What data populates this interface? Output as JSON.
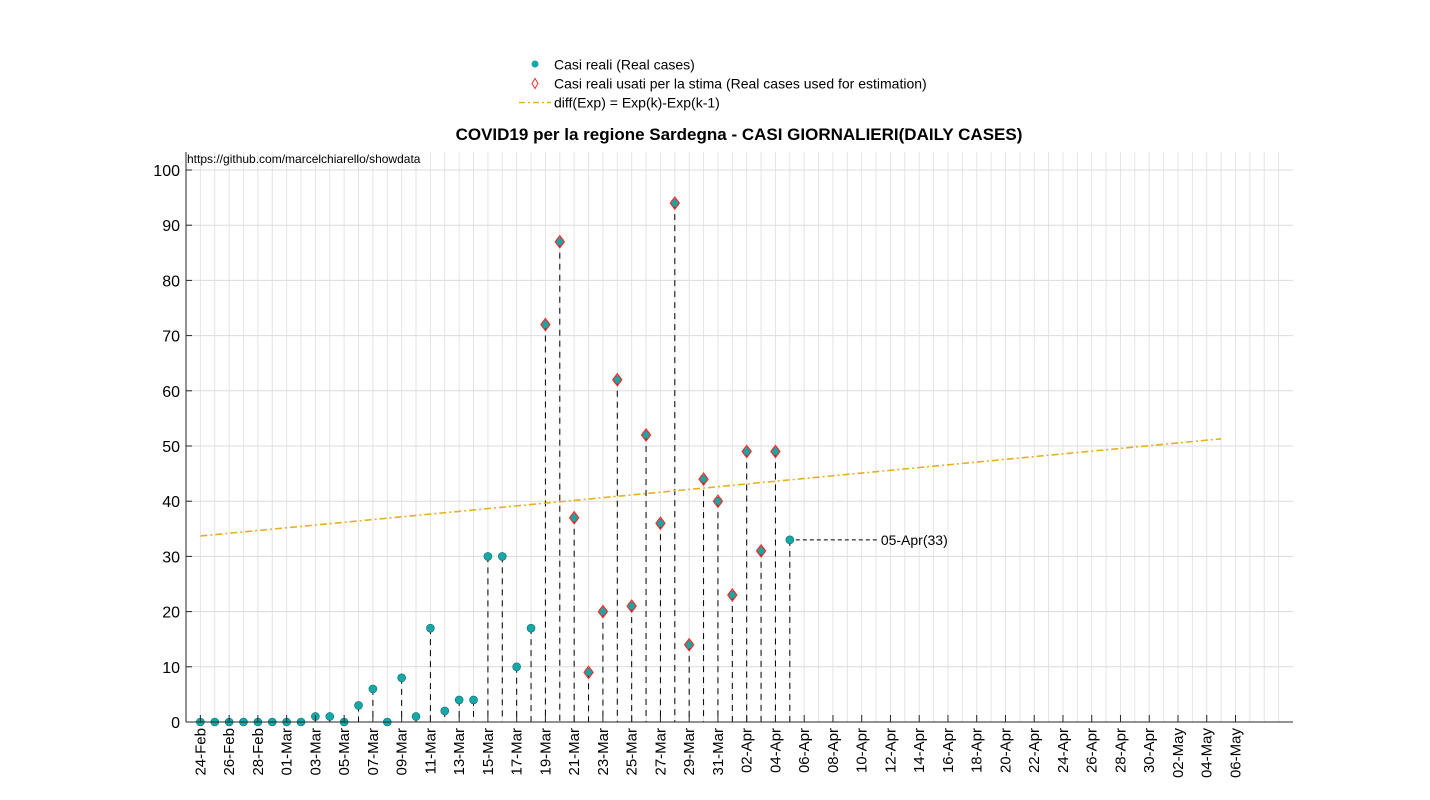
{
  "chart_data": {
    "type": "scatter",
    "title": "COVID19 per la regione Sardegna - CASI GIORNALIERI(DAILY CASES)",
    "source_text": "https://github.com/marcelchiarello/showdata",
    "xlabel": "",
    "ylabel": "",
    "ylim": [
      0,
      100
    ],
    "yticks": [
      0,
      10,
      20,
      30,
      40,
      50,
      60,
      70,
      80,
      90,
      100
    ],
    "xlim": [
      "2020-02-23",
      "2020-05-10"
    ],
    "xtick_labels": [
      "24-Feb",
      "26-Feb",
      "28-Feb",
      "01-Mar",
      "03-Mar",
      "05-Mar",
      "07-Mar",
      "09-Mar",
      "11-Mar",
      "13-Mar",
      "15-Mar",
      "17-Mar",
      "19-Mar",
      "21-Mar",
      "23-Mar",
      "25-Mar",
      "27-Mar",
      "29-Mar",
      "31-Mar",
      "02-Apr",
      "04-Apr",
      "06-Apr",
      "08-Apr",
      "10-Apr",
      "12-Apr",
      "14-Apr",
      "16-Apr",
      "18-Apr",
      "20-Apr",
      "22-Apr",
      "24-Apr",
      "26-Apr",
      "28-Apr",
      "30-Apr",
      "02-May",
      "04-May",
      "06-May"
    ],
    "grid": true,
    "legend_placement": "top-center",
    "legend": [
      "Casi reali (Real cases)",
      "Casi reali usati per la stima (Real cases used for estimation)",
      "diff(Exp) = Exp(k)-Exp(k-1)"
    ],
    "colors": {
      "real_cases": "#17a7a7",
      "estimation_marker": "#ff2a2a",
      "exp_line": "#e6b022",
      "stem": "#000000"
    },
    "series": [
      {
        "name": "Casi reali (Real cases)",
        "x": [
          "2020-02-24",
          "2020-02-25",
          "2020-02-26",
          "2020-02-27",
          "2020-02-28",
          "2020-02-29",
          "2020-03-01",
          "2020-03-02",
          "2020-03-03",
          "2020-03-04",
          "2020-03-05",
          "2020-03-06",
          "2020-03-07",
          "2020-03-08",
          "2020-03-09",
          "2020-03-10",
          "2020-03-11",
          "2020-03-12",
          "2020-03-13",
          "2020-03-14",
          "2020-03-15",
          "2020-03-16",
          "2020-03-17",
          "2020-03-18",
          "2020-03-19",
          "2020-03-20",
          "2020-03-21",
          "2020-03-22",
          "2020-03-23",
          "2020-03-24",
          "2020-03-25",
          "2020-03-26",
          "2020-03-27",
          "2020-03-28",
          "2020-03-29",
          "2020-03-30",
          "2020-03-31",
          "2020-04-01",
          "2020-04-02",
          "2020-04-03",
          "2020-04-04",
          "2020-04-05"
        ],
        "values": [
          0,
          0,
          0,
          0,
          0,
          0,
          0,
          0,
          1,
          1,
          0,
          3,
          6,
          0,
          8,
          1,
          17,
          2,
          4,
          4,
          30,
          30,
          10,
          17,
          72,
          87,
          37,
          9,
          20,
          62,
          21,
          52,
          36,
          94,
          14,
          44,
          40,
          23,
          49,
          31,
          49,
          33
        ]
      },
      {
        "name": "Casi reali usati per la stima (Real cases used for estimation)",
        "x": [
          "2020-03-19",
          "2020-03-20",
          "2020-03-21",
          "2020-03-22",
          "2020-03-23",
          "2020-03-24",
          "2020-03-25",
          "2020-03-26",
          "2020-03-27",
          "2020-03-28",
          "2020-03-29",
          "2020-03-30",
          "2020-03-31",
          "2020-04-01",
          "2020-04-02",
          "2020-04-03",
          "2020-04-04"
        ],
        "values": [
          72,
          87,
          37,
          9,
          20,
          62,
          21,
          52,
          36,
          94,
          14,
          44,
          40,
          23,
          49,
          31,
          49
        ]
      },
      {
        "name": "diff(Exp) = Exp(k)-Exp(k-1)",
        "x": [
          "2020-02-24",
          "2020-05-05"
        ],
        "values": [
          33.7,
          51.3
        ]
      }
    ],
    "annotations": [
      {
        "text": "05-Apr(33)",
        "x": "2020-04-05",
        "y": 33
      }
    ]
  }
}
